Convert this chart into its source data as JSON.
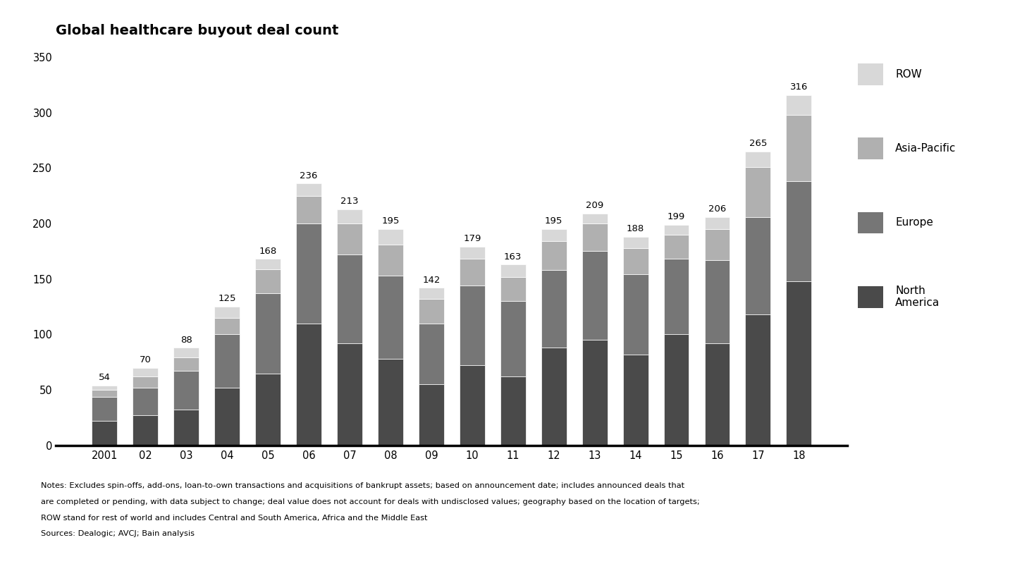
{
  "title": "Global healthcare buyout deal count",
  "years": [
    "2001",
    "02",
    "03",
    "04",
    "05",
    "06",
    "07",
    "08",
    "09",
    "10",
    "11",
    "12",
    "13",
    "14",
    "15",
    "16",
    "17",
    "18"
  ],
  "totals": [
    54,
    70,
    88,
    125,
    168,
    236,
    213,
    195,
    142,
    179,
    163,
    195,
    209,
    188,
    199,
    206,
    265,
    316
  ],
  "north_america": [
    22,
    27,
    32,
    52,
    65,
    110,
    92,
    78,
    55,
    72,
    62,
    88,
    95,
    82,
    100,
    92,
    118,
    148
  ],
  "europe": [
    22,
    25,
    35,
    48,
    72,
    90,
    80,
    75,
    55,
    72,
    68,
    70,
    80,
    72,
    68,
    75,
    88,
    90
  ],
  "asia_pacific": [
    6,
    10,
    12,
    15,
    22,
    25,
    28,
    28,
    22,
    24,
    22,
    26,
    25,
    24,
    22,
    28,
    45,
    60
  ],
  "row": [
    4,
    8,
    9,
    10,
    9,
    11,
    13,
    14,
    10,
    11,
    11,
    11,
    9,
    10,
    9,
    11,
    14,
    18
  ],
  "colors": {
    "north_america": "#4a4a4a",
    "europe": "#767676",
    "asia_pacific": "#b0b0b0",
    "row": "#d8d8d8"
  },
  "ylim": [
    0,
    350
  ],
  "yticks": [
    0,
    50,
    100,
    150,
    200,
    250,
    300,
    350
  ],
  "notes_line1": "Notes: Excludes spin-offs, add-ons, loan-to-own transactions and acquisitions of bankrupt assets; based on announcement date; includes announced deals that",
  "notes_line2": "are completed or pending, with data subject to change; deal value does not account for deals with undisclosed values; geography based on the location of targets;",
  "notes_line3": "ROW stand for rest of world and includes Central and South America, Africa and the Middle East",
  "notes_line4": "Sources: Dealogic; AVCJ; Bain analysis",
  "background_color": "#ffffff"
}
